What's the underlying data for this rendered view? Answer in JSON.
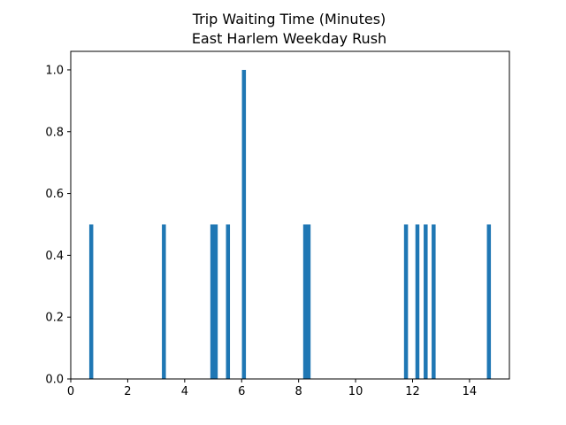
{
  "chart_data": {
    "type": "bar",
    "title": "Trip Waiting Time (Minutes)",
    "subtitle": "East Harlem Weekday Rush",
    "xlabel": "",
    "ylabel": "",
    "xlim": [
      0,
      15.4
    ],
    "ylim": [
      0,
      1.06
    ],
    "grid": false,
    "bar_width": 0.14,
    "bar_color": "#1f77b4",
    "x_ticks": [
      0,
      2,
      4,
      6,
      8,
      10,
      12,
      14
    ],
    "x_tick_labels": [
      "0",
      "2",
      "4",
      "6",
      "8",
      "10",
      "12",
      "14"
    ],
    "y_ticks": [
      0.0,
      0.2,
      0.4,
      0.6,
      0.8,
      1.0
    ],
    "y_tick_labels": [
      "0.0",
      "0.2",
      "0.4",
      "0.6",
      "0.8",
      "1.0"
    ],
    "bars": [
      {
        "x": 0.72,
        "value": 0.5
      },
      {
        "x": 3.27,
        "value": 0.5
      },
      {
        "x": 4.97,
        "value": 0.5
      },
      {
        "x": 5.09,
        "value": 0.5
      },
      {
        "x": 5.52,
        "value": 0.5
      },
      {
        "x": 6.08,
        "value": 1.0
      },
      {
        "x": 8.23,
        "value": 0.5
      },
      {
        "x": 8.35,
        "value": 0.5
      },
      {
        "x": 11.77,
        "value": 0.5
      },
      {
        "x": 12.17,
        "value": 0.5
      },
      {
        "x": 12.46,
        "value": 0.5
      },
      {
        "x": 12.74,
        "value": 0.5
      },
      {
        "x": 14.68,
        "value": 0.5
      }
    ]
  }
}
